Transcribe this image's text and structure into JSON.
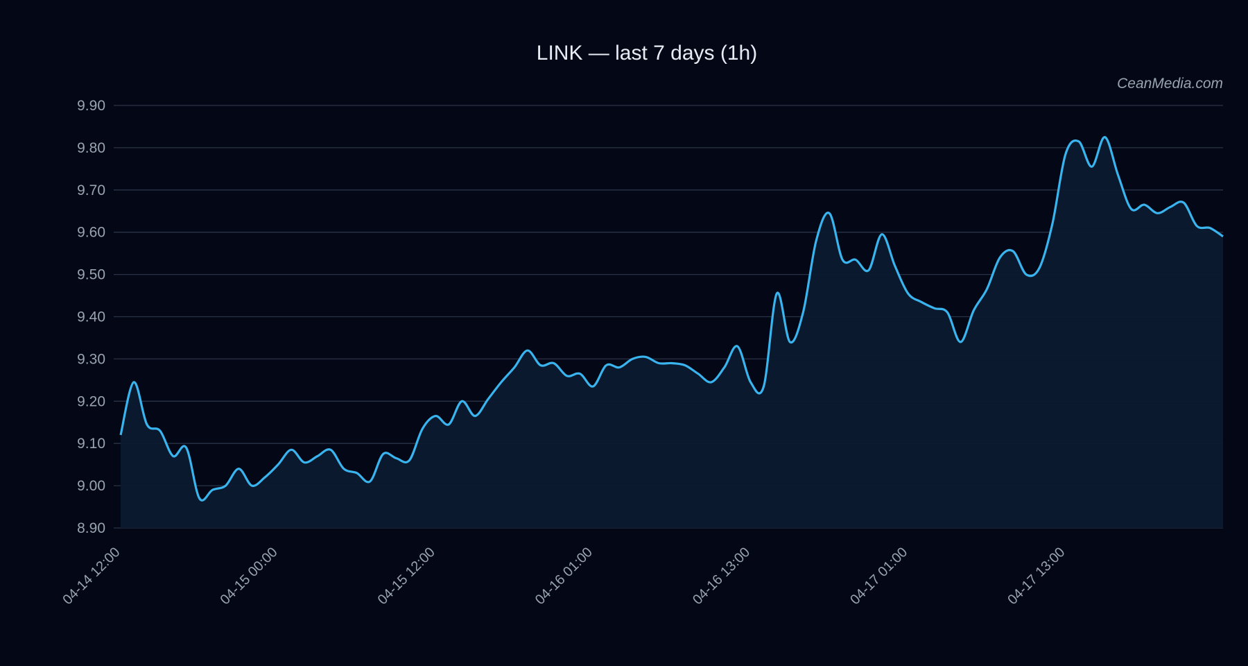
{
  "chart_data": {
    "type": "area",
    "title": "LINK — last 7 days (1h)",
    "watermark": "CeanMedia.com",
    "xlabel": "",
    "ylabel": "",
    "ylim": [
      8.9,
      9.9
    ],
    "grid": true,
    "yticks": [
      "9.90",
      "9.80",
      "9.70",
      "9.60",
      "9.50",
      "9.40",
      "9.30",
      "9.20",
      "9.10",
      "9.00",
      "8.90"
    ],
    "xticks": [
      {
        "label": "04-14 12:00",
        "index": 0
      },
      {
        "label": "04-15 00:00",
        "index": 12
      },
      {
        "label": "04-15 12:00",
        "index": 24
      },
      {
        "label": "04-16 01:00",
        "index": 36
      },
      {
        "label": "04-16 13:00",
        "index": 48
      },
      {
        "label": "04-17 01:00",
        "index": 60
      },
      {
        "label": "04-17 13:00",
        "index": 72
      }
    ],
    "colors": {
      "line": "#3ab4ee",
      "fill": "#0b1a2e",
      "background": "#040816"
    },
    "series": [
      {
        "values": [
          9.12,
          9.245,
          9.145,
          9.13,
          9.07,
          9.09,
          8.97,
          8.99,
          9.0,
          9.04,
          9.0,
          9.02,
          9.05,
          9.085,
          9.055,
          9.07,
          9.085,
          9.04,
          9.03,
          9.01,
          9.075,
          9.065,
          9.06,
          9.135,
          9.165,
          9.145,
          9.2,
          9.165,
          9.205,
          9.245,
          9.28,
          9.32,
          9.285,
          9.29,
          9.26,
          9.265,
          9.235,
          9.285,
          9.28,
          9.3,
          9.305,
          9.29,
          9.29,
          9.285,
          9.265,
          9.245,
          9.28,
          9.33,
          9.245,
          9.235,
          9.455,
          9.34,
          9.41,
          9.58,
          9.645,
          9.535,
          9.535,
          9.51,
          9.595,
          9.52,
          9.455,
          9.435,
          9.42,
          9.41,
          9.34,
          9.415,
          9.465,
          9.54,
          9.555,
          9.5,
          9.515,
          9.62,
          9.785,
          9.815,
          9.755,
          9.825,
          9.735,
          9.655,
          9.665,
          9.645,
          9.66,
          9.67,
          9.615,
          9.61,
          9.59
        ]
      }
    ]
  }
}
